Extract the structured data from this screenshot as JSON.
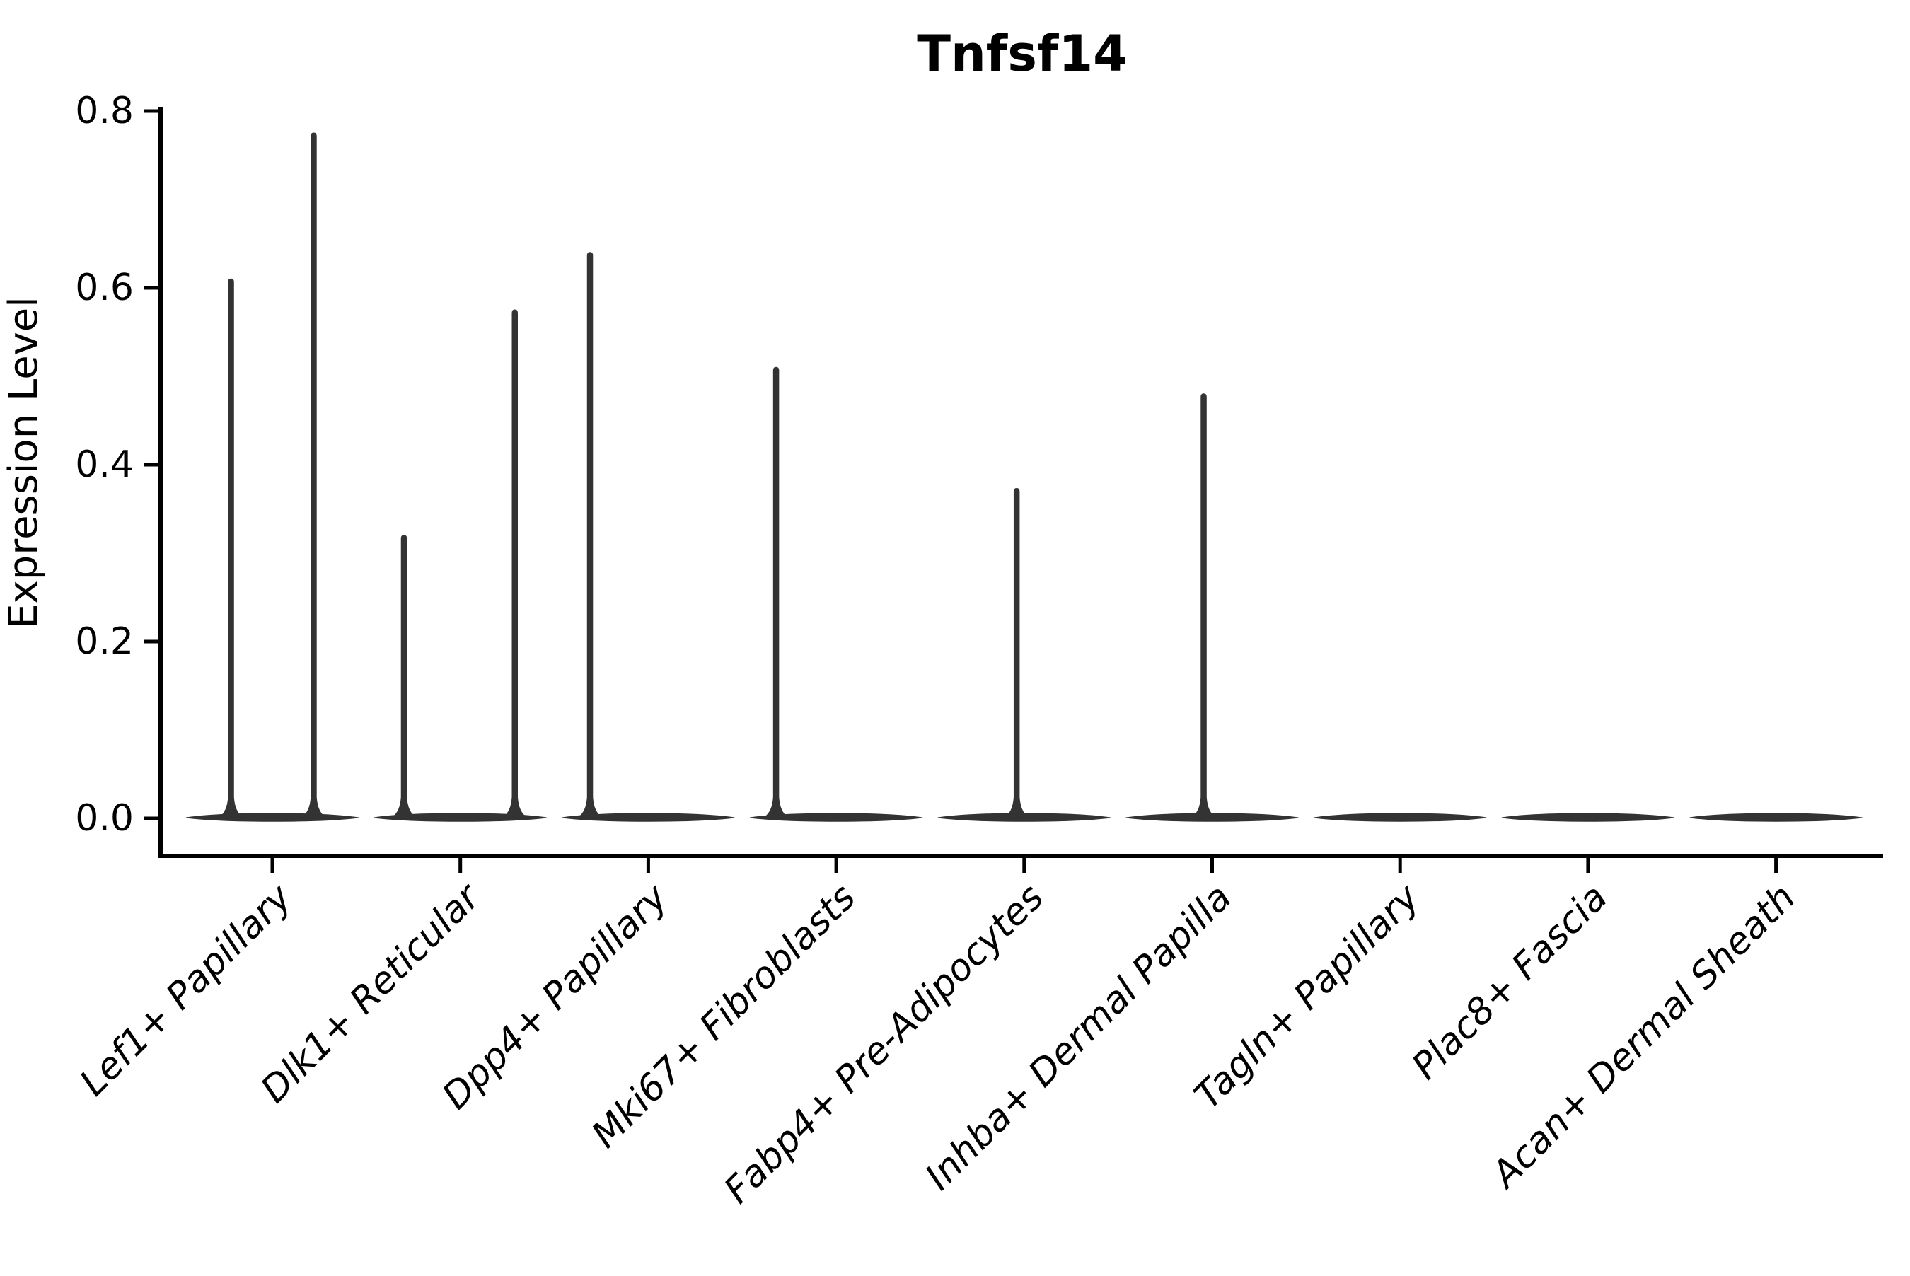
{
  "chart_data": {
    "type": "violin",
    "title": "Tnfsf14",
    "ylabel": "Expression Level",
    "xlabel": "",
    "y_ticks": [
      "0.0",
      "0.2",
      "0.4",
      "0.6",
      "0.8"
    ],
    "y_tick_values": [
      0.0,
      0.2,
      0.4,
      0.6,
      0.8
    ],
    "ylim": [
      -0.042,
      0.805
    ],
    "grid": false,
    "legend": "none",
    "violin_color": "#333333",
    "axis_color": "#000000",
    "categories": [
      "Lef1+ Papillary",
      "Dlk1+ Reticular",
      "Dpp4+ Papillary",
      "Mki67+ Fibroblasts",
      "Fabp4+ Pre-Adipocytes",
      "Inhba+ Dermal Papilla",
      "Tagln+ Papillary",
      "Plac8+ Fascia",
      "Acan+ Dermal Sheath"
    ],
    "series": [
      {
        "name": "Lef1+ Papillary",
        "base_max": 0.0,
        "spikes": [
          {
            "dx": -0.22,
            "max": 0.61
          },
          {
            "dx": 0.22,
            "max": 0.775
          }
        ]
      },
      {
        "name": "Dlk1+ Reticular",
        "base_max": 0.0,
        "spikes": [
          {
            "dx": -0.3,
            "max": 0.32
          },
          {
            "dx": 0.29,
            "max": 0.575
          }
        ]
      },
      {
        "name": "Dpp4+ Papillary",
        "base_max": 0.0,
        "spikes": [
          {
            "dx": -0.31,
            "max": 0.64
          }
        ]
      },
      {
        "name": "Mki67+ Fibroblasts",
        "base_max": 0.0,
        "spikes": [
          {
            "dx": -0.32,
            "max": 0.51
          }
        ]
      },
      {
        "name": "Fabp4+ Pre-Adipocytes",
        "base_max": 0.0,
        "spikes": [
          {
            "dx": -0.04,
            "max": 0.373
          }
        ]
      },
      {
        "name": "Inhba+ Dermal Papilla",
        "base_max": 0.0,
        "spikes": [
          {
            "dx": -0.045,
            "max": 0.48
          }
        ]
      },
      {
        "name": "Tagln+ Papillary",
        "base_max": 0.0,
        "spikes": []
      },
      {
        "name": "Plac8+ Fascia",
        "base_max": 0.0,
        "spikes": []
      },
      {
        "name": "Acan+ Dermal Sheath",
        "base_max": 0.0,
        "spikes": []
      }
    ]
  }
}
